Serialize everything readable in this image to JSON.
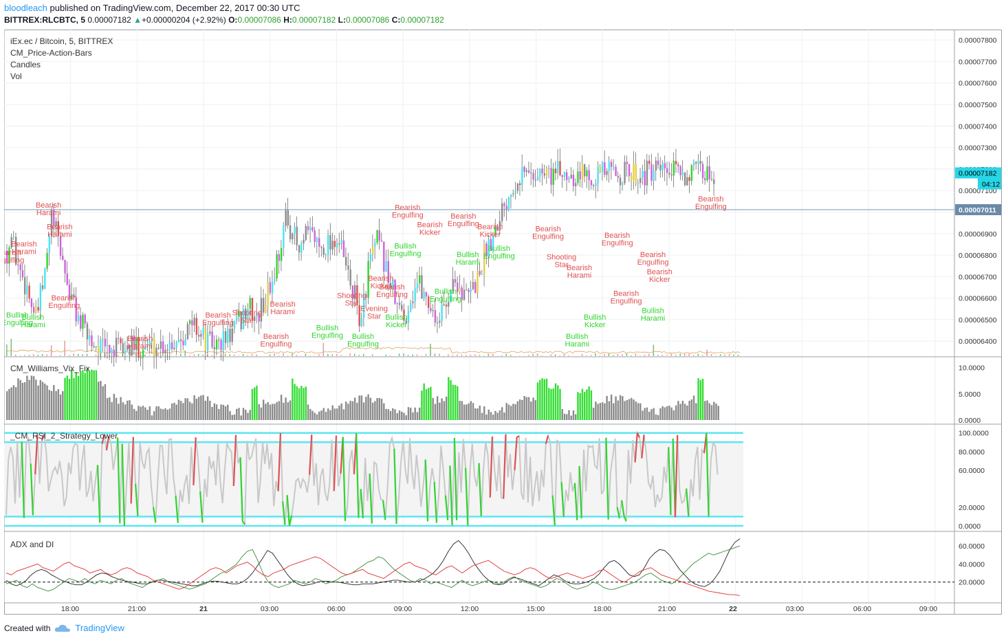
{
  "header": {
    "user": "bloodleach",
    "published": "published on TradingView.com, December 22, 2017 00:30 UTC",
    "symbol": "BITTREX:RLCBTC, 5",
    "last": "0.00007182",
    "change": "+0.00000204 (+2.92%)",
    "o_label": "O:",
    "o_value": "0.00007086",
    "h_label": "H:",
    "h_value": "0.00007182",
    "l_label": "L:",
    "l_value": "0.00007086",
    "c_label": "C:",
    "c_value": "0.00007182"
  },
  "panes": {
    "main_title": "iEx.ec / Bitcoin, 5, BITTREX",
    "main_indicators": [
      "CM_Price-Action-Bars",
      "Candles",
      "Vol"
    ],
    "vix_title": "CM_Williams_Vix_Fix",
    "rsi_title": "_CM_RSI_2_Strategy_Lower",
    "adx_title": "ADX and DI"
  },
  "footer": {
    "created_with": "Created with",
    "brand": "TradingView"
  },
  "colors": {
    "bull": "#2ed52e",
    "bear": "#e05050",
    "magenta": "#d060e0",
    "cyan": "#48e4f4",
    "grey": "#8c8c8c",
    "rsi_line": "#c8c8c8",
    "band": "#5ce6f0",
    "axis_badge": "#27d6e6",
    "hline": "#6f9ab8"
  },
  "chart_data": [
    {
      "type": "candlestick",
      "title": "iEx.ec / Bitcoin, 5, BITTREX",
      "y_ticks": [
        "0.00006400",
        "0.00006500",
        "0.00006600",
        "0.00006700",
        "0.00006800",
        "0.00006900",
        "0.00007000",
        "0.00007100",
        "0.00007200",
        "0.00007300",
        "0.00007400",
        "0.00007500",
        "0.00007600",
        "0.00007700",
        "0.00007800"
      ],
      "ylim": [
        6.34e-05,
        7.81e-05
      ],
      "x_ticks": [
        "18:00",
        "21:00",
        "21",
        "03:00",
        "06:00",
        "09:00",
        "12:00",
        "15:00",
        "18:00",
        "21:00",
        "22",
        "03:00",
        "06:00",
        "09:00"
      ],
      "last_price_badge": "0.00007182",
      "countdown_badge": "04:12",
      "horizontal_line_badge": "0.00007011",
      "horizontal_line_value": 7.011e-05,
      "price_path": [
        [
          0,
          6.82e-05
        ],
        [
          2,
          6.88e-05
        ],
        [
          5,
          6.75e-05
        ],
        [
          9,
          6.65e-05
        ],
        [
          13,
          6.5e-05
        ],
        [
          17,
          6.7e-05
        ],
        [
          20,
          6.98e-05
        ],
        [
          24,
          6.82e-05
        ],
        [
          28,
          6.62e-05
        ],
        [
          33,
          6.48e-05
        ],
        [
          38,
          6.4e-05
        ],
        [
          44,
          6.36e-05
        ],
        [
          52,
          6.36e-05
        ],
        [
          60,
          6.38e-05
        ],
        [
          68,
          6.38e-05
        ],
        [
          75,
          6.4e-05
        ],
        [
          80,
          6.45e-05
        ],
        [
          84,
          6.48e-05
        ],
        [
          89,
          6.4e-05
        ],
        [
          94,
          6.38e-05
        ],
        [
          99,
          6.42e-05
        ],
        [
          104,
          6.48e-05
        ],
        [
          108,
          6.56e-05
        ],
        [
          112,
          6.5e-05
        ],
        [
          116,
          6.6e-05
        ],
        [
          119,
          6.68e-05
        ],
        [
          122,
          6.82e-05
        ],
        [
          125,
          6.96e-05
        ],
        [
          128,
          6.92e-05
        ],
        [
          131,
          6.8e-05
        ],
        [
          134,
          6.88e-05
        ],
        [
          137,
          6.9e-05
        ],
        [
          140,
          6.84e-05
        ],
        [
          144,
          6.86e-05
        ],
        [
          148,
          6.88e-05
        ],
        [
          150,
          6.82e-05
        ],
        [
          153,
          6.7e-05
        ],
        [
          156,
          6.6e-05
        ],
        [
          159,
          6.48e-05
        ],
        [
          162,
          6.75e-05
        ],
        [
          166,
          6.86e-05
        ],
        [
          169,
          6.78e-05
        ],
        [
          172,
          6.66e-05
        ],
        [
          175,
          6.56e-05
        ],
        [
          178,
          6.5e-05
        ],
        [
          181,
          6.6e-05
        ],
        [
          184,
          6.68e-05
        ],
        [
          187,
          6.62e-05
        ],
        [
          190,
          6.56e-05
        ],
        [
          193,
          6.5e-05
        ],
        [
          196,
          6.55e-05
        ],
        [
          199,
          6.65e-05
        ],
        [
          202,
          6.68e-05
        ],
        [
          205,
          6.6e-05
        ],
        [
          208,
          6.62e-05
        ],
        [
          212,
          6.72e-05
        ],
        [
          215,
          6.84e-05
        ],
        [
          218,
          6.9e-05
        ],
        [
          221,
          7e-05
        ],
        [
          224,
          7.06e-05
        ],
        [
          227,
          7.14e-05
        ],
        [
          230,
          7.18e-05
        ]
      ],
      "annotations": [
        {
          "text": "Bearish Harami",
          "x": 19,
          "v": 7.02e-05,
          "c": "bear"
        },
        {
          "text": "Bearish Harami",
          "x": 24,
          "v": 6.92e-05,
          "c": "bear"
        },
        {
          "text": "Bearish Harami",
          "x": 8,
          "v": 6.84e-05,
          "c": "bear"
        },
        {
          "text": "Bearish Engulfing",
          "x": 1,
          "v": 6.8e-05,
          "c": "bear"
        },
        {
          "text": "Bearish Engulfing",
          "x": 26,
          "v": 6.59e-05,
          "c": "bear"
        },
        {
          "text": "Bullish Engulfing",
          "x": 5,
          "v": 6.51e-05,
          "c": "bull"
        },
        {
          "text": "Bullish Harami",
          "x": 12,
          "v": 6.5e-05,
          "c": "bull"
        },
        {
          "text": "Bearish Harami",
          "x": 60,
          "v": 6.4e-05,
          "c": "bear"
        },
        {
          "text": "Bearish Engulfing",
          "x": 121,
          "v": 6.41e-05,
          "c": "bear"
        },
        {
          "text": "Shooting Star",
          "x": 108,
          "v": 6.52e-05,
          "c": "bear"
        },
        {
          "text": "Bearish Harami",
          "x": 124,
          "v": 6.56e-05,
          "c": "bear"
        },
        {
          "text": "Bearish Engulfing",
          "x": 95,
          "v": 6.51e-05,
          "c": "bear"
        },
        {
          "text": "Bullish Engulfing",
          "x": 144,
          "v": 6.45e-05,
          "c": "bull"
        },
        {
          "text": "Bullish Engulfing",
          "x": 160,
          "v": 6.41e-05,
          "c": "bull"
        },
        {
          "text": "Shooting Star",
          "x": 155,
          "v": 6.6e-05,
          "c": "bear"
        },
        {
          "text": "Evening Star",
          "x": 165,
          "v": 6.54e-05,
          "c": "bear"
        },
        {
          "text": "Bearish Kicker",
          "x": 168,
          "v": 6.68e-05,
          "c": "bear"
        },
        {
          "text": "Bearish Engulfing",
          "x": 173,
          "v": 6.64e-05,
          "c": "bear"
        },
        {
          "text": "Bullish Kicker",
          "x": 175,
          "v": 6.5e-05,
          "c": "bull"
        },
        {
          "text": "Bearish Engulfing",
          "x": 180,
          "v": 7.01e-05,
          "c": "bear"
        },
        {
          "text": "Bearish Kicker",
          "x": 190,
          "v": 6.93e-05,
          "c": "bear"
        },
        {
          "text": "Bullish Engulfing",
          "x": 179,
          "v": 6.83e-05,
          "c": "bull"
        },
        {
          "text": "Bullish Engulfing",
          "x": 197,
          "v": 6.62e-05,
          "c": "bull"
        },
        {
          "text": "Bearish Engulfing",
          "x": 205,
          "v": 6.97e-05,
          "c": "bear"
        },
        {
          "text": "Bullish Harami",
          "x": 207,
          "v": 6.79e-05,
          "c": "bull"
        },
        {
          "text": "Bullish Engulfing",
          "x": 221,
          "v": 6.82e-05,
          "c": "bull"
        },
        {
          "text": "Bearish Kicker",
          "x": 217,
          "v": 6.92e-05,
          "c": "bear"
        },
        {
          "text": "Bearish Engulfing",
          "x": 243,
          "v": 6.91e-05,
          "c": "bear"
        },
        {
          "text": "Shooting Star",
          "x": 249,
          "v": 6.78e-05,
          "c": "bear"
        },
        {
          "text": "Bearish Harami",
          "x": 257,
          "v": 6.73e-05,
          "c": "bear"
        },
        {
          "text": "Bullish Harami",
          "x": 256,
          "v": 6.41e-05,
          "c": "bull"
        },
        {
          "text": "Bullish Kicker",
          "x": 264,
          "v": 6.5e-05,
          "c": "bull"
        },
        {
          "text": "Bearish Engulfing",
          "x": 274,
          "v": 6.88e-05,
          "c": "bear"
        },
        {
          "text": "Bearish Engulfing",
          "x": 290,
          "v": 6.79e-05,
          "c": "bear"
        },
        {
          "text": "Bearish Kicker",
          "x": 293,
          "v": 6.71e-05,
          "c": "bear"
        },
        {
          "text": "Bearish Engulfing",
          "x": 278,
          "v": 6.61e-05,
          "c": "bear"
        },
        {
          "text": "Bullish Harami",
          "x": 290,
          "v": 6.53e-05,
          "c": "bull"
        },
        {
          "text": "Bearish Engulfing",
          "x": 316,
          "v": 7.05e-05,
          "c": "bear"
        }
      ]
    },
    {
      "type": "bar",
      "title": "CM_Williams_Vix_Fix",
      "y_ticks": [
        "0.0000",
        "5.0000",
        "10.0000"
      ],
      "ylim": [
        0,
        12
      ],
      "highlight_ranges": [
        [
          26,
          40
        ],
        [
          110,
          112
        ],
        [
          128,
          134
        ],
        [
          186,
          190
        ],
        [
          198,
          202
        ],
        [
          238,
          248
        ],
        [
          256,
          262
        ],
        [
          310,
          312
        ]
      ]
    },
    {
      "type": "line",
      "title": "_CM_RSI_2_Strategy_Lower",
      "y_ticks": [
        "0.0000",
        "20.0000",
        "60.0000",
        "80.0000",
        "100.0000"
      ],
      "ylim": [
        0,
        102
      ],
      "bands": [
        0,
        10,
        90,
        100
      ]
    },
    {
      "type": "line",
      "title": "ADX and DI",
      "y_ticks": [
        "20.0000",
        "40.0000",
        "60.0000"
      ],
      "ylim": [
        0,
        70
      ],
      "threshold": 20,
      "series": [
        {
          "name": "ADX",
          "color": "#222222",
          "values": [
            22,
            18,
            16,
            18,
            22,
            28,
            32,
            34,
            32,
            28,
            25,
            22,
            20,
            18,
            17,
            17,
            20,
            24,
            28,
            30,
            29,
            26,
            24,
            22,
            21,
            20,
            19,
            18,
            18,
            20,
            22,
            22,
            21,
            20,
            19,
            18,
            17,
            16,
            16,
            18,
            20,
            21,
            21,
            20,
            19,
            18,
            18,
            20,
            24,
            30,
            38,
            46,
            55,
            52,
            44,
            36,
            28,
            22,
            18,
            16,
            17,
            18,
            20,
            21,
            21,
            20,
            20,
            19,
            18,
            17,
            17,
            18,
            18,
            18,
            19,
            20,
            21,
            22,
            22,
            21,
            20,
            20,
            21,
            23,
            26,
            30,
            36,
            44,
            54,
            62,
            66,
            60,
            52,
            42,
            34,
            27,
            22,
            18,
            17,
            18,
            22,
            25,
            24,
            22,
            20,
            18,
            16,
            20,
            24,
            28,
            26,
            22,
            19,
            18,
            18,
            19,
            21,
            24,
            29,
            36,
            42,
            44,
            40,
            34,
            28,
            26,
            28,
            36,
            46,
            52,
            56,
            55,
            50,
            42,
            34,
            28,
            22,
            18,
            16,
            15,
            18,
            24,
            32,
            44,
            56,
            64,
            68
          ]
        },
        {
          "name": "+DI",
          "color": "#3a8a3a",
          "values": [
            18,
            20,
            22,
            16,
            14,
            18,
            14,
            12,
            10,
            12,
            16,
            20,
            24,
            22,
            20,
            24,
            20,
            18,
            22,
            20,
            18,
            22,
            24,
            20,
            18,
            16,
            14,
            18,
            20,
            22,
            24,
            20,
            18,
            16,
            14,
            12,
            14,
            16,
            18,
            22,
            26,
            30,
            32,
            36,
            40,
            48,
            54,
            56,
            44,
            30,
            20,
            16,
            14,
            16,
            18,
            22,
            20,
            18,
            20,
            24,
            22,
            18,
            20,
            22,
            26,
            28,
            30,
            34,
            38,
            42,
            44,
            48,
            46,
            40,
            34,
            30,
            26,
            22,
            20,
            24,
            22,
            18,
            20,
            18,
            16,
            14,
            18,
            22,
            18,
            16,
            18,
            20,
            22,
            20,
            18,
            20,
            24,
            26,
            22,
            20,
            18,
            16,
            14,
            16,
            20,
            24,
            22,
            18,
            14,
            12,
            14,
            16,
            20,
            18,
            14,
            12,
            12,
            14,
            16,
            18,
            20,
            24,
            28,
            30,
            26,
            22,
            20,
            18,
            22,
            28,
            34,
            40,
            44,
            48,
            52,
            50,
            52,
            54,
            56,
            58,
            60
          ]
        },
        {
          "name": "-DI",
          "color": "#e03030",
          "values": [
            30,
            28,
            32,
            34,
            36,
            38,
            40,
            36,
            34,
            32,
            36,
            40,
            42,
            38,
            36,
            34,
            30,
            32,
            34,
            30,
            28,
            30,
            34,
            36,
            34,
            30,
            28,
            26,
            22,
            20,
            18,
            16,
            14,
            12,
            14,
            18,
            22,
            26,
            30,
            34,
            36,
            34,
            30,
            34,
            38,
            40,
            42,
            38,
            32,
            28,
            26,
            30,
            32,
            34,
            38,
            40,
            42,
            44,
            46,
            48,
            46,
            42,
            38,
            34,
            30,
            28,
            30,
            32,
            34,
            30,
            28,
            26,
            24,
            28,
            32,
            36,
            40,
            42,
            38,
            36,
            34,
            30,
            28,
            32,
            36,
            38,
            34,
            30,
            34,
            38,
            40,
            42,
            44,
            40,
            36,
            32,
            30,
            28,
            30,
            34,
            36,
            34,
            30,
            26,
            24,
            26,
            28,
            30,
            28,
            26,
            24,
            26,
            28,
            32,
            34,
            30,
            26,
            22,
            20,
            24,
            28,
            32,
            34,
            36,
            32,
            28,
            26,
            24,
            22,
            20,
            18,
            16,
            14,
            12,
            10,
            9,
            8,
            7,
            6,
            6,
            5
          ]
        }
      ]
    }
  ]
}
